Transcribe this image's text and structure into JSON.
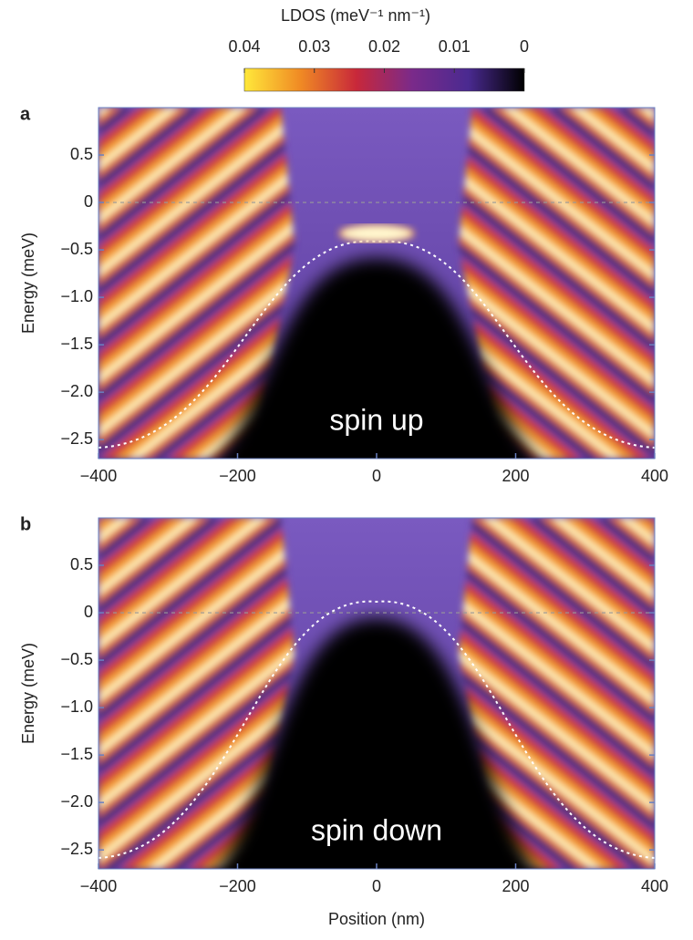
{
  "chart_data": [
    {
      "type": "heatmap",
      "panel_label": "a",
      "annotation": "spin up",
      "ylabel": "Energy (meV)",
      "colorbar": {
        "label": "LDOS (meV⁻¹ nm⁻¹)",
        "lim": [
          0.04,
          0
        ],
        "ticks": [
          0.04,
          0.03,
          0.02,
          0.01,
          0
        ],
        "colors": [
          "#ffe83a",
          "#f08a24",
          "#c8283a",
          "#7a2a8a",
          "#4a2a90",
          "#000000"
        ]
      },
      "xlim": [
        -400,
        400
      ],
      "xticks": [
        {
          "value": -400,
          "label": "−400"
        },
        {
          "value": -200,
          "label": "−200"
        },
        0,
        200,
        400
      ],
      "ylim": [
        -2.7,
        1.0
      ],
      "yticks": [
        0.5,
        0,
        {
          "value": -0.5,
          "label": "−0.5"
        },
        {
          "value": -1.0,
          "label": "−1.0"
        },
        {
          "value": -1.5,
          "label": "−1.5"
        },
        {
          "value": -2.0,
          "label": "−2.0"
        },
        {
          "value": -2.5,
          "label": "−2.5"
        }
      ],
      "reference_line": 0
    },
    {
      "type": "heatmap",
      "panel_label": "b",
      "annotation": "spin down",
      "ylabel": "Energy (meV)",
      "xlabel": "Position (nm)",
      "xlim": [
        -400,
        400
      ],
      "xticks": [
        {
          "value": -400,
          "label": "−400"
        },
        {
          "value": -200,
          "label": "−200"
        },
        0,
        200,
        400
      ],
      "ylim": [
        -2.7,
        1.0
      ],
      "yticks": [
        0.5,
        0,
        {
          "value": -0.5,
          "label": "−0.5"
        },
        {
          "value": -1.0,
          "label": "−1.0"
        },
        {
          "value": -1.5,
          "label": "−1.5"
        },
        {
          "value": -2.0,
          "label": "−2.0"
        },
        {
          "value": -2.5,
          "label": "−2.5"
        }
      ],
      "reference_line": 0
    }
  ]
}
